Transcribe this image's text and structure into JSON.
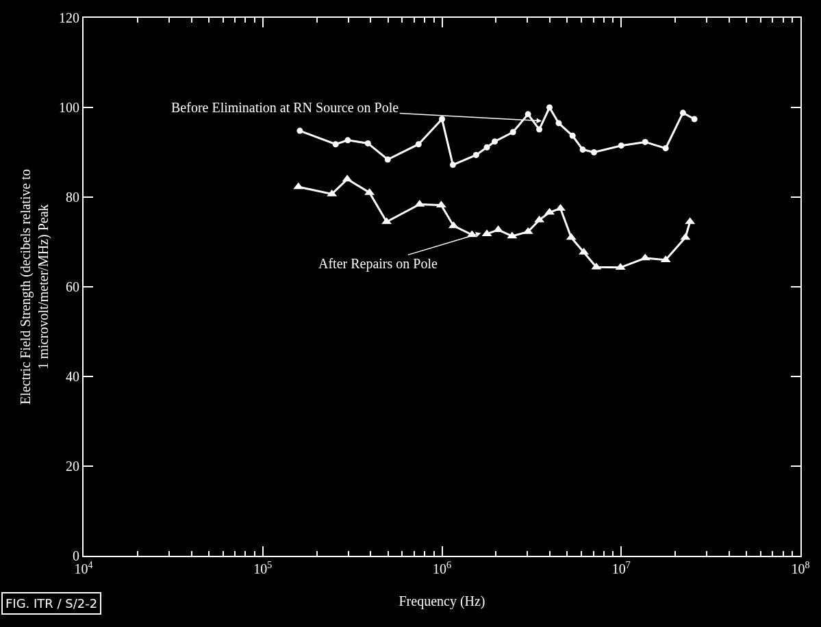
{
  "chart_data": {
    "type": "line",
    "xlabel": "Frequency (Hz)",
    "ylabel": "Electric Field Strength (decibels relative to\n1 microvolt/meter/MHz) Peak",
    "log": "x",
    "xlim": [
      10000,
      100000000
    ],
    "xticks": [
      {
        "value": 10000,
        "label": "10$^{4}$"
      },
      {
        "value": 100000,
        "label": "10$^{5}$"
      },
      {
        "value": 1000000,
        "label": "10$^{6}$"
      },
      {
        "value": 10000000,
        "label": "10$^{7}$"
      },
      {
        "value": 100000000,
        "label": "10$^{8}$"
      }
    ],
    "ylim": [
      0,
      120
    ],
    "yticks": [
      0,
      20,
      40,
      60,
      80,
      100,
      120
    ],
    "series": [
      {
        "color": "#ffffff",
        "marker": "circle",
        "x": [
          161000,
          255000,
          298000,
          386000,
          498000,
          740000,
          1000000,
          1150000,
          1550000,
          1780000,
          1970000,
          2490000,
          3020000,
          3490000,
          3980000,
          4480000,
          5350000,
          6100000,
          7050000,
          10000000,
          13600000,
          17700000,
          22100000,
          25600000
        ],
        "values": [
          94.8,
          91.8,
          92.7,
          92.0,
          88.4,
          91.8,
          97.4,
          87.2,
          89.4,
          91.1,
          92.4,
          94.5,
          98.5,
          95.1,
          100.0,
          96.5,
          93.7,
          90.6,
          90.0,
          91.5,
          92.3,
          90.9,
          98.8,
          97.4
        ]
      },
      {
        "color": "#ffffff",
        "marker": "triangle",
        "x": [
          158000,
          243000,
          296000,
          394000,
          491000,
          750000,
          990000,
          1160000,
          1470000,
          1600000,
          1780000,
          2060000,
          2460000,
          3020000,
          3490000,
          3980000,
          4580000,
          5260000,
          6180000,
          7260000,
          9900000,
          13600000,
          17700000,
          22800000,
          24200000
        ],
        "values": [
          82.3,
          80.7,
          84.0,
          81.0,
          74.5,
          78.4,
          78.2,
          73.6,
          71.6,
          null,
          71.8,
          72.7,
          71.3,
          72.3,
          74.9,
          76.6,
          77.5,
          71.0,
          67.7,
          64.4,
          64.3,
          66.4,
          66.0,
          71.0,
          74.5
        ]
      }
    ],
    "annotations": [
      {
        "text": "Before Elimination at RN Source on Pole",
        "x": 3600000,
        "y": 97
      },
      {
        "text": "After Repairs on Pole",
        "x": 1650000,
        "y": 72
      },
      "FIG. ITR / S/2-2"
    ]
  }
}
